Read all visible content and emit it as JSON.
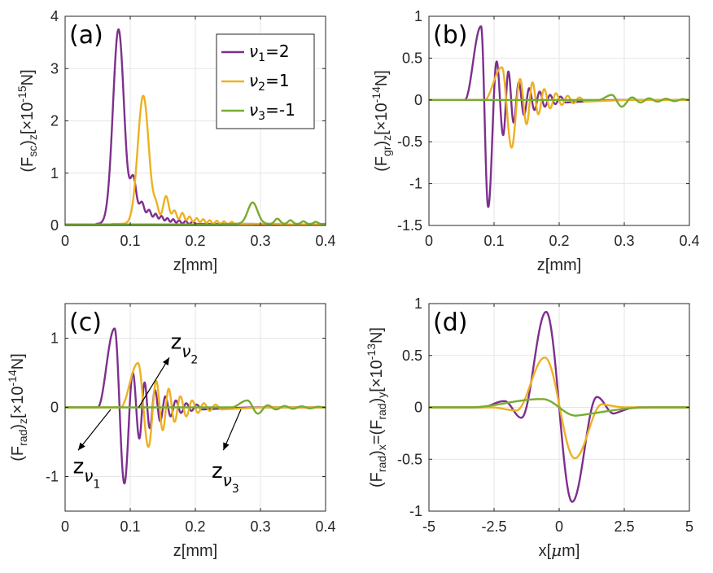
{
  "colors": {
    "nu1": "#7E2F8E",
    "nu2": "#EDB120",
    "nu3": "#77AC30",
    "grid": "#e6e6e6",
    "axis": "#262626"
  },
  "legend": {
    "placement": "top-right of panel (a)",
    "entries": [
      {
        "sym": "ν",
        "sub": "1",
        "eq": "=2",
        "series": "nu1"
      },
      {
        "sym": "ν",
        "sub": "2",
        "eq": "=1",
        "series": "nu2"
      },
      {
        "sym": "ν",
        "sub": "3",
        "eq": "=-1",
        "series": "nu3"
      }
    ]
  },
  "chart_data": [
    {
      "id": "a",
      "type": "line",
      "panel_label": "(a)",
      "xlabel": "z[mm]",
      "ylabel_parts": {
        "pre": "(F",
        "sub": "sc",
        "mid": ")",
        "sub2": "z",
        "post": "[×10",
        "sup": "-15",
        "end": "N]"
      },
      "xlim": [
        0,
        0.4
      ],
      "ylim": [
        0,
        4
      ],
      "xticks": [
        0,
        0.1,
        0.2,
        0.3,
        0.4
      ],
      "xticklabels": [
        "0",
        "0.1",
        "0.2",
        "0.3",
        "0.4"
      ],
      "yticks": [
        0,
        1,
        2,
        3,
        4
      ],
      "yticklabels": [
        "0",
        "1",
        "2",
        "3",
        "4"
      ],
      "grid": true,
      "series": [
        {
          "key": "nu1",
          "kind": "peaks",
          "base": 0.03,
          "onset": 0.048,
          "tail": 0.29,
          "peaks": [
            [
              0.082,
              3.72,
              0.0085
            ],
            [
              0.105,
              0.82,
              0.0048
            ],
            [
              0.118,
              0.4,
              0.004
            ],
            [
              0.129,
              0.26,
              0.0035
            ],
            [
              0.139,
              0.19,
              0.003
            ],
            [
              0.148,
              0.15,
              0.0028
            ],
            [
              0.157,
              0.11,
              0.0026
            ],
            [
              0.166,
              0.09,
              0.0024
            ],
            [
              0.175,
              0.07,
              0.0022
            ],
            [
              0.185,
              0.06,
              0.002
            ],
            [
              0.196,
              0.05,
              0.002
            ]
          ]
        },
        {
          "key": "nu2",
          "kind": "peaks",
          "base": 0.03,
          "onset": 0.072,
          "tail": 0.33,
          "peaks": [
            [
              0.12,
              2.45,
              0.0085
            ],
            [
              0.14,
              0.28,
              0.004
            ],
            [
              0.155,
              0.53,
              0.0045
            ],
            [
              0.168,
              0.25,
              0.0035
            ],
            [
              0.18,
              0.21,
              0.0032
            ],
            [
              0.191,
              0.14,
              0.003
            ],
            [
              0.202,
              0.11,
              0.0028
            ],
            [
              0.212,
              0.09,
              0.0026
            ],
            [
              0.222,
              0.07,
              0.0024
            ],
            [
              0.233,
              0.06,
              0.0022
            ],
            [
              0.244,
              0.05,
              0.002
            ],
            [
              0.256,
              0.04,
              0.002
            ]
          ]
        },
        {
          "key": "nu3",
          "kind": "peaks",
          "base": 0.03,
          "onset": 0.24,
          "tail": 0.4,
          "peaks": [
            [
              0.288,
              0.41,
              0.0075
            ],
            [
              0.326,
              0.1,
              0.004
            ],
            [
              0.346,
              0.07,
              0.0035
            ],
            [
              0.366,
              0.05,
              0.0032
            ],
            [
              0.385,
              0.04,
              0.003
            ]
          ]
        }
      ]
    },
    {
      "id": "b",
      "type": "line",
      "panel_label": "(b)",
      "xlabel": "z[mm]",
      "ylabel_parts": {
        "pre": "(F",
        "sub": "gr",
        "mid": ")",
        "sub2": "z",
        "post": "[×10",
        "sup": "-14",
        "end": "N]"
      },
      "xlim": [
        0,
        0.4
      ],
      "ylim": [
        -1.5,
        1
      ],
      "xticks": [
        0,
        0.1,
        0.2,
        0.3,
        0.4
      ],
      "xticklabels": [
        "0",
        "0.1",
        "0.2",
        "0.3",
        "0.4"
      ],
      "yticks": [
        -1.5,
        -1,
        -0.5,
        0,
        0.5,
        1
      ],
      "yticklabels": [
        "-1.5",
        "-1",
        "-0.5",
        "0",
        "0.5",
        "1"
      ],
      "grid": true,
      "series": [
        {
          "key": "nu1",
          "kind": "extrema",
          "onset": 0.055,
          "tail": 0.3,
          "extrema": [
            [
              0.08,
              0.88
            ],
            [
              0.091,
              -1.28
            ],
            [
              0.104,
              0.46
            ],
            [
              0.114,
              -0.42
            ],
            [
              0.122,
              0.34
            ],
            [
              0.13,
              -0.27
            ],
            [
              0.138,
              0.21
            ],
            [
              0.146,
              -0.18
            ],
            [
              0.154,
              0.14
            ],
            [
              0.162,
              -0.12
            ],
            [
              0.17,
              0.1
            ],
            [
              0.178,
              -0.08
            ],
            [
              0.186,
              0.06
            ],
            [
              0.194,
              -0.05
            ],
            [
              0.202,
              0.04
            ],
            [
              0.21,
              -0.03
            ]
          ]
        },
        {
          "key": "nu2",
          "kind": "extrema",
          "onset": 0.085,
          "tail": 0.32,
          "extrema": [
            [
              0.112,
              0.39
            ],
            [
              0.127,
              -0.57
            ],
            [
              0.14,
              0.25
            ],
            [
              0.15,
              -0.29
            ],
            [
              0.159,
              0.21
            ],
            [
              0.168,
              -0.17
            ],
            [
              0.177,
              0.13
            ],
            [
              0.186,
              -0.1
            ],
            [
              0.195,
              0.08
            ],
            [
              0.204,
              -0.06
            ],
            [
              0.213,
              0.05
            ],
            [
              0.222,
              -0.04
            ],
            [
              0.231,
              0.03
            ],
            [
              0.24,
              -0.02
            ]
          ]
        },
        {
          "key": "nu3",
          "kind": "extrema",
          "onset": 0.26,
          "tail": 0.4,
          "extrema": [
            [
              0.281,
              0.06
            ],
            [
              0.296,
              -0.08
            ],
            [
              0.312,
              0.03
            ],
            [
              0.325,
              -0.03
            ],
            [
              0.338,
              0.02
            ],
            [
              0.351,
              -0.02
            ],
            [
              0.364,
              0.015
            ],
            [
              0.377,
              -0.015
            ],
            [
              0.39,
              0.01
            ]
          ]
        }
      ]
    },
    {
      "id": "c",
      "type": "line",
      "panel_label": "(c)",
      "xlabel": "z[mm]",
      "ylabel_parts": {
        "pre": "(F",
        "sub": "rad",
        "mid": ")",
        "sub2": "z",
        "post": "[×10",
        "sup": "-14",
        "end": "N]"
      },
      "xlim": [
        0,
        0.4
      ],
      "ylim": [
        -1.5,
        1.5
      ],
      "xticks": [
        0,
        0.1,
        0.2,
        0.3,
        0.4
      ],
      "xticklabels": [
        "0",
        "0.1",
        "0.2",
        "0.3",
        "0.4"
      ],
      "yticks": [
        -1,
        0,
        1
      ],
      "yticklabels": [
        "-1",
        "0",
        "1"
      ],
      "grid": true,
      "series": [
        {
          "key": "nu1",
          "kind": "extrema",
          "onset": 0.05,
          "tail": 0.3,
          "extrema": [
            [
              0.076,
              1.14
            ],
            [
              0.091,
              -1.1
            ],
            [
              0.104,
              0.5
            ],
            [
              0.114,
              -0.45
            ],
            [
              0.122,
              0.36
            ],
            [
              0.13,
              -0.3
            ],
            [
              0.138,
              0.25
            ],
            [
              0.146,
              -0.2
            ],
            [
              0.154,
              0.16
            ],
            [
              0.162,
              -0.13
            ],
            [
              0.17,
              0.1
            ],
            [
              0.178,
              -0.08
            ],
            [
              0.186,
              0.06
            ],
            [
              0.194,
              -0.05
            ],
            [
              0.202,
              0.04
            ],
            [
              0.21,
              -0.03
            ]
          ]
        },
        {
          "key": "nu2",
          "kind": "extrema",
          "onset": 0.085,
          "tail": 0.32,
          "extrema": [
            [
              0.112,
              0.64
            ],
            [
              0.128,
              -0.57
            ],
            [
              0.14,
              0.38
            ],
            [
              0.15,
              -0.33
            ],
            [
              0.159,
              0.27
            ],
            [
              0.168,
              -0.21
            ],
            [
              0.177,
              0.16
            ],
            [
              0.186,
              -0.13
            ],
            [
              0.195,
              0.1
            ],
            [
              0.204,
              -0.08
            ],
            [
              0.213,
              0.06
            ],
            [
              0.222,
              -0.05
            ],
            [
              0.231,
              0.04
            ],
            [
              0.24,
              -0.03
            ]
          ]
        },
        {
          "key": "nu3",
          "kind": "extrema",
          "onset": 0.255,
          "tail": 0.4,
          "extrema": [
            [
              0.28,
              0.1
            ],
            [
              0.296,
              -0.09
            ],
            [
              0.311,
              0.03
            ],
            [
              0.324,
              -0.03
            ],
            [
              0.337,
              0.02
            ],
            [
              0.35,
              -0.02
            ],
            [
              0.363,
              0.015
            ],
            [
              0.376,
              -0.015
            ],
            [
              0.389,
              0.01
            ]
          ]
        }
      ],
      "annotations": [
        {
          "name": "z-nu1-annotation",
          "text": "z",
          "sym": "ν",
          "sub": "1",
          "from": [
            0.07,
            -0.03
          ],
          "to": [
            0.02,
            -0.62
          ],
          "label": [
            0.012,
            -0.95
          ]
        },
        {
          "name": "z-nu2-annotation",
          "text": "z",
          "sym": "ν",
          "sub": "2",
          "from": [
            0.113,
            0.0
          ],
          "to": [
            0.16,
            0.72
          ],
          "label": [
            0.162,
            0.85
          ]
        },
        {
          "name": "z-nu3-annotation",
          "text": "z",
          "sym": "ν",
          "sub": "3",
          "from": [
            0.27,
            -0.03
          ],
          "to": [
            0.243,
            -0.62
          ],
          "label": [
            0.225,
            -1.02
          ]
        }
      ]
    },
    {
      "id": "d",
      "type": "line",
      "panel_label": "(d)",
      "xlabel_parts": {
        "pre": "x[",
        "mu": "μ",
        "post": "m]"
      },
      "ylabel_parts": {
        "pre": "(F",
        "sub": "rad",
        "mid": ")",
        "sub2": "x",
        "eq": "=(F",
        "sub3": "rad",
        "mid2": ")",
        "sub4": "y",
        "post": "[×10",
        "sup": "-13",
        "end": "N]"
      },
      "xlim": [
        -5,
        5
      ],
      "ylim": [
        -1,
        1
      ],
      "xticks": [
        -5,
        -2.5,
        0,
        2.5,
        5
      ],
      "xticklabels": [
        "-5",
        "-2.5",
        "0",
        "2.5",
        "5"
      ],
      "yticks": [
        -1,
        -0.5,
        0,
        0.5,
        1
      ],
      "yticklabels": [
        "-1",
        "-0.5",
        "0",
        "0.5",
        "1"
      ],
      "grid": true,
      "series": [
        {
          "key": "nu1",
          "kind": "extrema",
          "onset": -3.0,
          "tail": 3.0,
          "extrema": [
            [
              -2.1,
              0.06
            ],
            [
              -1.45,
              -0.1
            ],
            [
              -0.5,
              0.92
            ],
            [
              0.5,
              -0.91
            ],
            [
              1.45,
              0.1
            ],
            [
              2.1,
              -0.06
            ]
          ]
        },
        {
          "key": "nu2",
          "kind": "extrema",
          "onset": -2.6,
          "tail": 2.6,
          "extrema": [
            [
              -1.65,
              -0.03
            ],
            [
              -0.55,
              0.48
            ],
            [
              0.6,
              -0.49
            ],
            [
              1.65,
              0.03
            ]
          ]
        },
        {
          "key": "nu3",
          "kind": "extrema",
          "onset": -3.5,
          "tail": 3.5,
          "extrema": [
            [
              -0.65,
              0.08
            ],
            [
              0.65,
              -0.08
            ]
          ]
        }
      ]
    }
  ]
}
